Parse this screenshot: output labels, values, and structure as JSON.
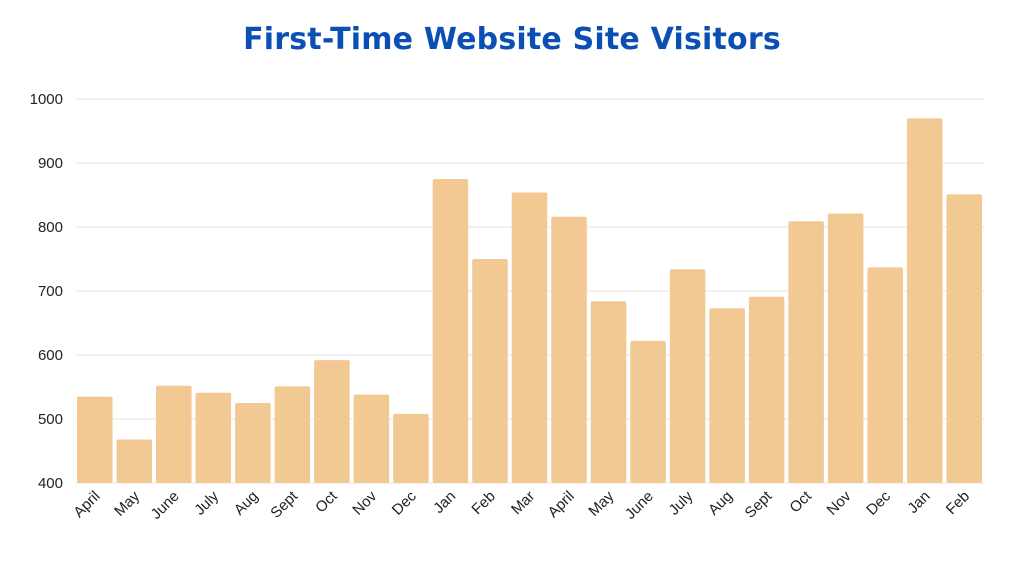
{
  "chart_data": {
    "type": "bar",
    "title": "First-Time Website Site Visitors",
    "xlabel": "",
    "ylabel": "",
    "ylim": [
      400,
      1000
    ],
    "yticks": [
      400,
      500,
      600,
      700,
      800,
      900,
      1000
    ],
    "grid": true,
    "bar_color": "#f2c893",
    "title_color": "#0b4fb3",
    "categories": [
      "April",
      "May",
      "June",
      "July",
      "Aug",
      "Sept",
      "Oct",
      "Nov",
      "Dec",
      "Jan",
      "Feb",
      "Mar",
      "April",
      "May",
      "June",
      "July",
      "Aug",
      "Sept",
      "Oct",
      "Nov",
      "Dec",
      "Jan",
      "Feb"
    ],
    "values": [
      535,
      468,
      552,
      541,
      525,
      551,
      592,
      538,
      508,
      875,
      750,
      854,
      816,
      684,
      622,
      734,
      673,
      691,
      809,
      821,
      737,
      970,
      851
    ]
  }
}
